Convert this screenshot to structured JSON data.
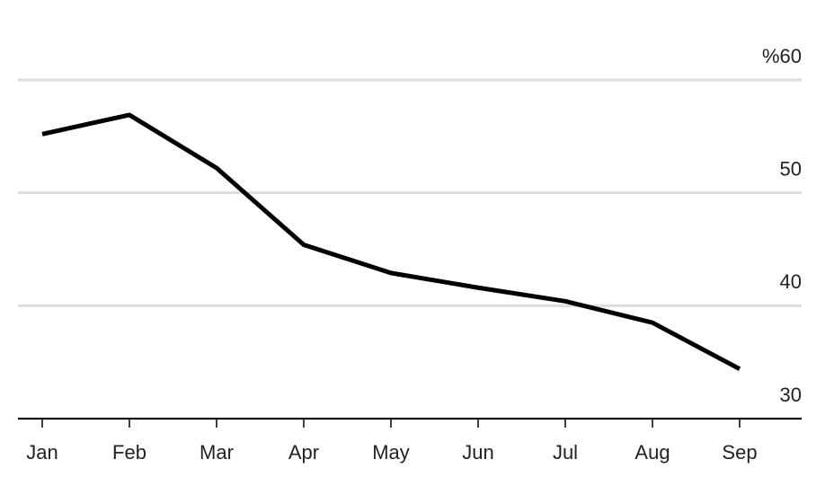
{
  "chart_data": {
    "type": "line",
    "categories": [
      "Jan",
      "Feb",
      "Mar",
      "Apr",
      "May",
      "Jun",
      "Jul",
      "Aug",
      "Sep"
    ],
    "series": [
      {
        "color": "#000000",
        "values": [
          55.2,
          56.9,
          52.2,
          45.4,
          42.9,
          41.6,
          40.4,
          38.5,
          34.4
        ]
      }
    ],
    "ylim": [
      30,
      60
    ],
    "yticks": [
      30,
      40,
      50,
      {
        "value": 60,
        "label": "%60"
      }
    ],
    "grid": true
  }
}
